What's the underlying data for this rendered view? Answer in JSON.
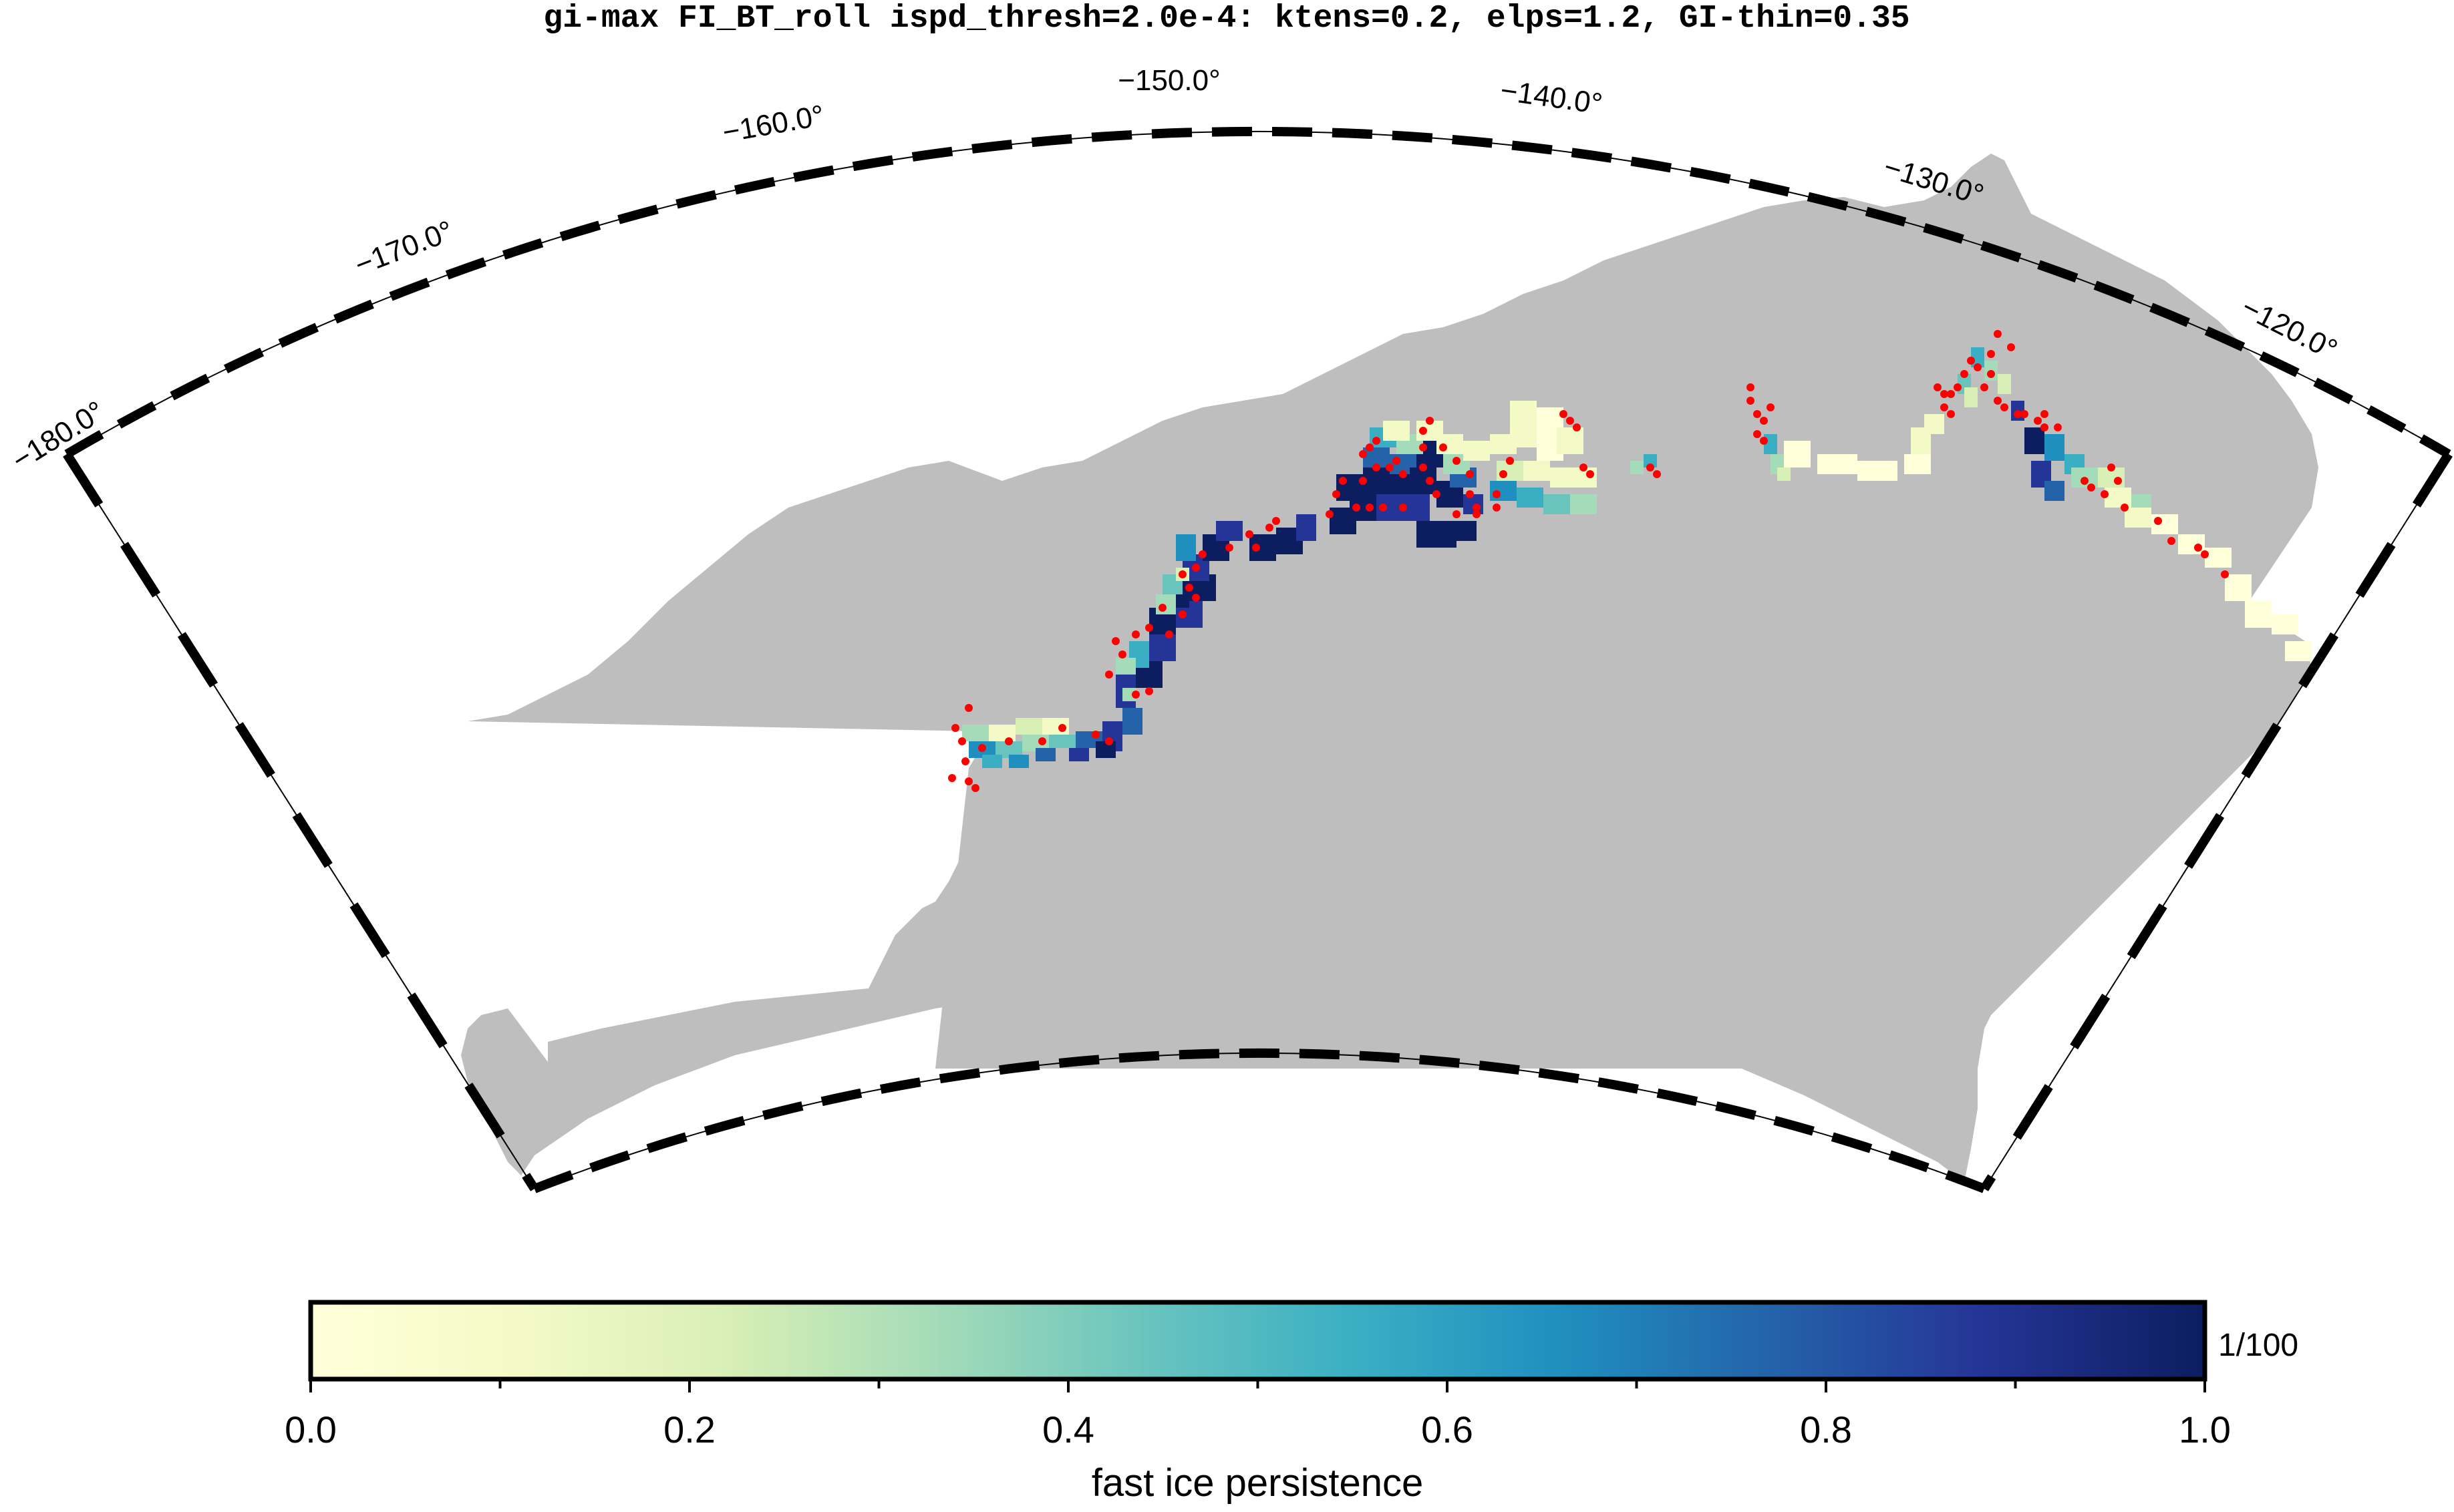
{
  "title": "gi-max FI_BT_roll ispd_thresh=2.0e-4: ktens=0.2, elps=1.2, GI-thin=0.35",
  "map": {
    "longitude_labels": [
      "−180.0°",
      "−170.0°",
      "−160.0°",
      "−150.0°",
      "−140.0°",
      "−130.0°",
      "−120.0°"
    ],
    "longitude_values": [
      -180,
      -170,
      -160,
      -150,
      -140,
      -130,
      -120
    ],
    "land_color": "#bebebe",
    "grounded_ice_point_color": "#ff0000"
  },
  "colorbar": {
    "title": "fast ice persistence",
    "unit": "1/100",
    "tick_labels": [
      "0.0",
      "0.2",
      "0.4",
      "0.6",
      "0.8",
      "1.0"
    ],
    "tick_values": [
      0.0,
      0.2,
      0.4,
      0.6,
      0.8,
      1.0
    ],
    "range": [
      0.0,
      1.0
    ],
    "colors": [
      "#ffffd9",
      "#f4fac6",
      "#d8efb5",
      "#a4dbb8",
      "#6ac4be",
      "#3aafc3",
      "#1f8fbf",
      "#2463a9",
      "#253597",
      "#0c1e60"
    ]
  }
}
